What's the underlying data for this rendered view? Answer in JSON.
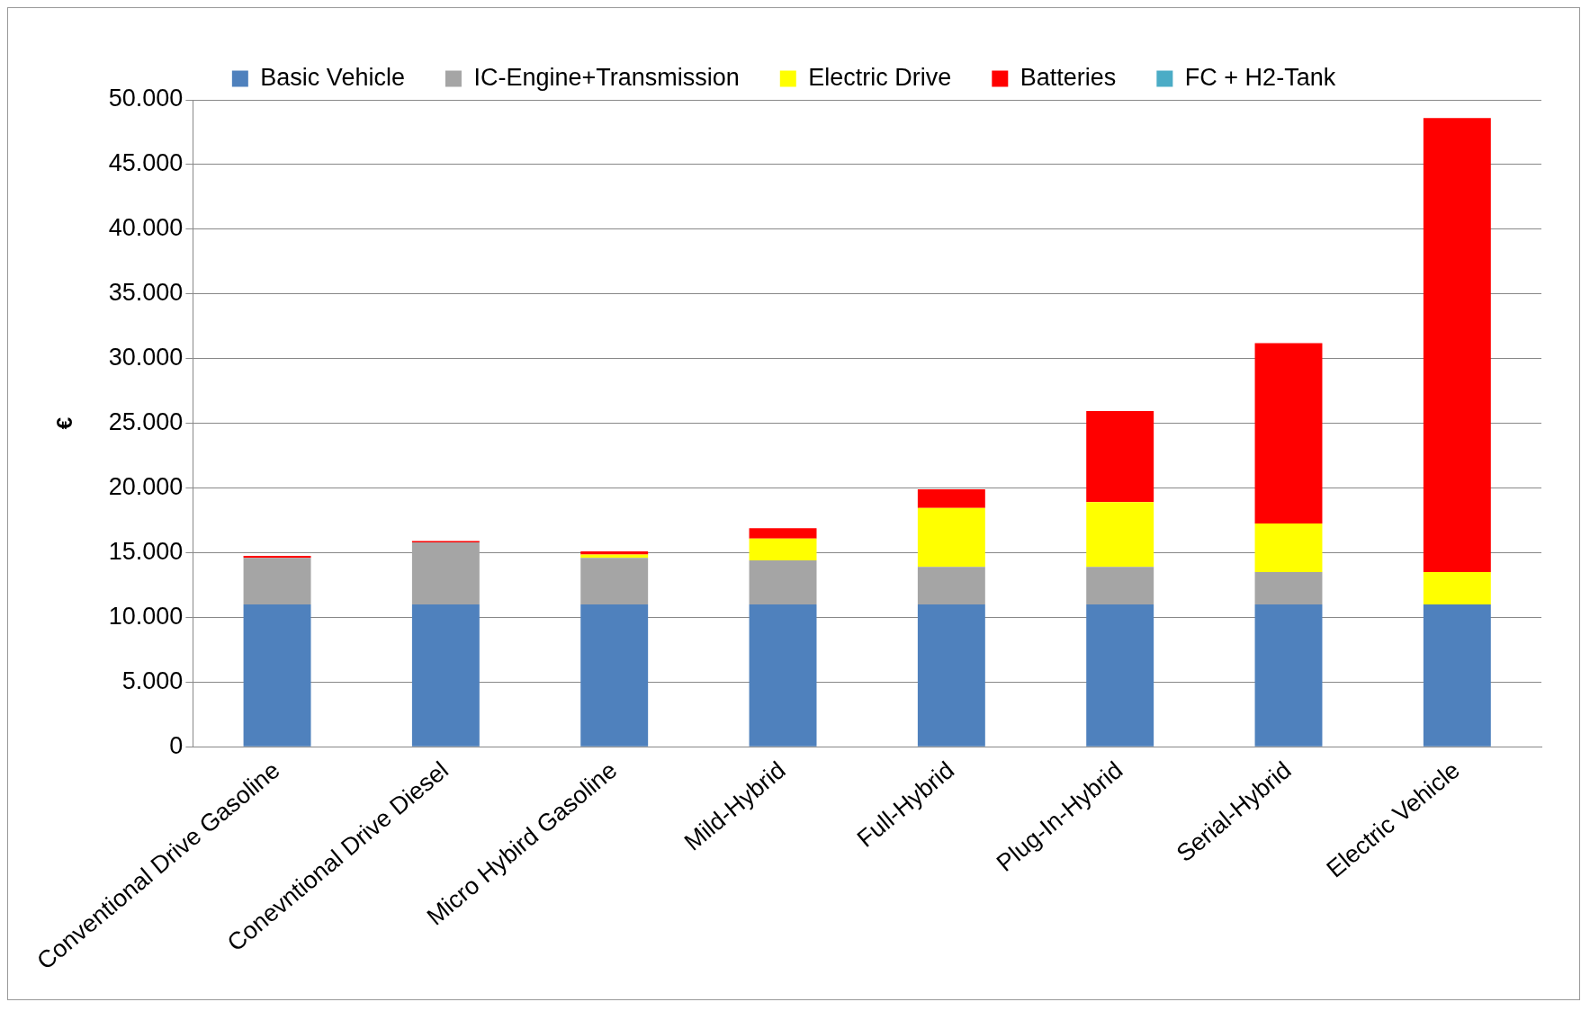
{
  "chart_data": {
    "type": "bar",
    "stacked": true,
    "ylabel": "€",
    "categories": [
      "Conventional Drive Gasoline",
      "Conevntional Drive Diesel",
      "Micro Hybird Gasoline",
      "Mild-Hybrid",
      "Full-Hybrid",
      "Plug-In-Hybrid",
      "Serial-Hybrid",
      "Electric Vehicle"
    ],
    "series": [
      {
        "name": "Basic Vehicle",
        "color": "#4f81bd",
        "values": [
          11000,
          11000,
          11000,
          11000,
          11000,
          11000,
          11000,
          11000
        ]
      },
      {
        "name": "IC-Engine+Transmission",
        "color": "#a5a5a5",
        "values": [
          3600,
          4800,
          3600,
          3400,
          2900,
          2900,
          2500,
          0
        ]
      },
      {
        "name": "Electric Drive",
        "color": "#ffff00",
        "values": [
          0,
          0,
          250,
          1700,
          4550,
          5000,
          3750,
          2500
        ]
      },
      {
        "name": "Batteries",
        "color": "#ff0000",
        "values": [
          150,
          100,
          250,
          800,
          1450,
          7050,
          13950,
          35100
        ]
      },
      {
        "name": "FC + H2-Tank",
        "color": "#4bacc6",
        "values": [
          0,
          0,
          0,
          0,
          0,
          0,
          0,
          0
        ]
      }
    ],
    "ylim": [
      0,
      50000
    ],
    "yticks": [
      {
        "value": 0,
        "label": "0"
      },
      {
        "value": 5000,
        "label": "5.000"
      },
      {
        "value": 10000,
        "label": "10.000"
      },
      {
        "value": 15000,
        "label": "15.000"
      },
      {
        "value": 20000,
        "label": "20.000"
      },
      {
        "value": 25000,
        "label": "25.000"
      },
      {
        "value": 30000,
        "label": "30.000"
      },
      {
        "value": 35000,
        "label": "35.000"
      },
      {
        "value": 40000,
        "label": "40.000"
      },
      {
        "value": 45000,
        "label": "45.000"
      },
      {
        "value": 50000,
        "label": "50.000"
      }
    ],
    "grid": "y",
    "legend": "top"
  }
}
